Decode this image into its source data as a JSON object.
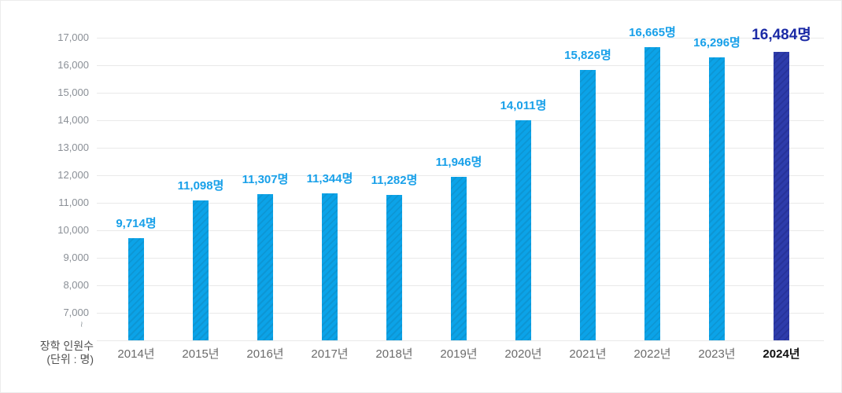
{
  "chart_data": {
    "type": "bar",
    "title": "",
    "categories": [
      "2014년",
      "2015년",
      "2016년",
      "2017년",
      "2018년",
      "2019년",
      "2020년",
      "2021년",
      "2022년",
      "2023년",
      "2024년"
    ],
    "values": [
      9714,
      11098,
      11307,
      11344,
      11282,
      11946,
      14011,
      15826,
      16665,
      16296,
      16484
    ],
    "value_labels": [
      "9,714명",
      "11,098명",
      "11,307명",
      "11,344명",
      "11,282명",
      "11,946명",
      "14,011명",
      "15,826명",
      "16,665명",
      "16,296명",
      "16,484명"
    ],
    "yticks": [
      {
        "label": "17,000",
        "value": 17000
      },
      {
        "label": "16,000",
        "value": 16000
      },
      {
        "label": "15,000",
        "value": 15000
      },
      {
        "label": "14,000",
        "value": 14000
      },
      {
        "label": "13,000",
        "value": 13000
      },
      {
        "label": "12,000",
        "value": 12000
      },
      {
        "label": "11,000",
        "value": 11000
      },
      {
        "label": "10,000",
        "value": 10000
      },
      {
        "label": "9,000",
        "value": 9000
      },
      {
        "label": "8,000",
        "value": 8000
      },
      {
        "label": "7,000",
        "value": 7000
      }
    ],
    "ylabel_line1": "장학 인원수",
    "ylabel_line2": "(단위 : 명)",
    "axis_break_symbol": "~",
    "ylim": [
      7000,
      17000
    ],
    "visual_baseline_value": 6000,
    "grid": true,
    "legend_position": "none",
    "highlight_index": 10,
    "colors": {
      "bar": "#0ba3e8",
      "bar_stripe": "#0d96d4",
      "highlight_bar": "#2e3cab",
      "highlight_bar_stripe": "#27339a",
      "value_label": "#18a0e9",
      "highlight_value_label": "#1c2ba6",
      "tick_label": "#8a8f96",
      "category_label": "#6b6b6b",
      "highlight_category_label": "#101010",
      "gridline": "#e9e9e9"
    }
  }
}
